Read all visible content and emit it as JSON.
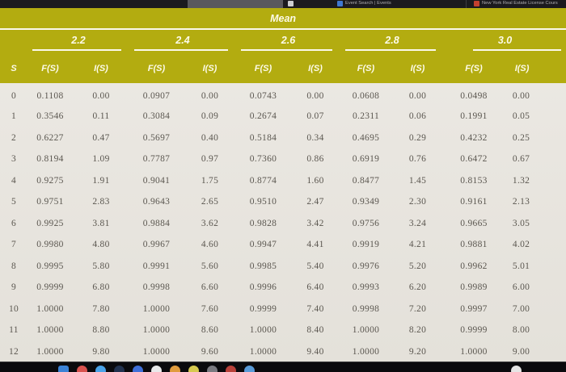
{
  "topbar": {
    "tab_events": "Event Search | Events",
    "tab_realestate": "New York Real Estate License Cours"
  },
  "table": {
    "title": "Mean",
    "row_label_header": "S",
    "col_groups": [
      {
        "mean": "2.2"
      },
      {
        "mean": "2.4"
      },
      {
        "mean": "2.6"
      },
      {
        "mean": "2.8"
      },
      {
        "mean": "3.0"
      }
    ],
    "sub_headers": {
      "f": "F(S)",
      "i": "I(S)"
    },
    "rows": [
      {
        "s": "0",
        "values": [
          "0.1108",
          "0.00",
          "0.0907",
          "0.00",
          "0.0743",
          "0.00",
          "0.0608",
          "0.00",
          "0.0498",
          "0.00"
        ]
      },
      {
        "s": "1",
        "values": [
          "0.3546",
          "0.11",
          "0.3084",
          "0.09",
          "0.2674",
          "0.07",
          "0.2311",
          "0.06",
          "0.1991",
          "0.05"
        ]
      },
      {
        "s": "2",
        "values": [
          "0.6227",
          "0.47",
          "0.5697",
          "0.40",
          "0.5184",
          "0.34",
          "0.4695",
          "0.29",
          "0.4232",
          "0.25"
        ]
      },
      {
        "s": "3",
        "values": [
          "0.8194",
          "1.09",
          "0.7787",
          "0.97",
          "0.7360",
          "0.86",
          "0.6919",
          "0.76",
          "0.6472",
          "0.67"
        ]
      },
      {
        "s": "4",
        "values": [
          "0.9275",
          "1.91",
          "0.9041",
          "1.75",
          "0.8774",
          "1.60",
          "0.8477",
          "1.45",
          "0.8153",
          "1.32"
        ]
      },
      {
        "s": "5",
        "values": [
          "0.9751",
          "2.83",
          "0.9643",
          "2.65",
          "0.9510",
          "2.47",
          "0.9349",
          "2.30",
          "0.9161",
          "2.13"
        ]
      },
      {
        "s": "6",
        "values": [
          "0.9925",
          "3.81",
          "0.9884",
          "3.62",
          "0.9828",
          "3.42",
          "0.9756",
          "3.24",
          "0.9665",
          "3.05"
        ]
      },
      {
        "s": "7",
        "values": [
          "0.9980",
          "4.80",
          "0.9967",
          "4.60",
          "0.9947",
          "4.41",
          "0.9919",
          "4.21",
          "0.9881",
          "4.02"
        ]
      },
      {
        "s": "8",
        "values": [
          "0.9995",
          "5.80",
          "0.9991",
          "5.60",
          "0.9985",
          "5.40",
          "0.9976",
          "5.20",
          "0.9962",
          "5.01"
        ]
      },
      {
        "s": "9",
        "values": [
          "0.9999",
          "6.80",
          "0.9998",
          "6.60",
          "0.9996",
          "6.40",
          "0.9993",
          "6.20",
          "0.9989",
          "6.00"
        ]
      },
      {
        "s": "10",
        "values": [
          "1.0000",
          "7.80",
          "1.0000",
          "7.60",
          "0.9999",
          "7.40",
          "0.9998",
          "7.20",
          "0.9997",
          "7.00"
        ]
      },
      {
        "s": "11",
        "values": [
          "1.0000",
          "8.80",
          "1.0000",
          "8.60",
          "1.0000",
          "8.40",
          "1.0000",
          "8.20",
          "0.9999",
          "8.00"
        ]
      },
      {
        "s": "12",
        "values": [
          "1.0000",
          "9.80",
          "1.0000",
          "9.60",
          "1.0000",
          "9.40",
          "1.0000",
          "9.20",
          "1.0000",
          "9.00"
        ]
      }
    ]
  },
  "colors": {
    "header_yellow": "#b3ac10",
    "header_text": "#fdfbe9",
    "body_bg": "#e9e6e0",
    "body_text": "#5b5750",
    "topbar_bg": "#1b1a1e",
    "dock_bg": "#0a0a0d"
  },
  "dock_icons": [
    {
      "name": "app-icon-1",
      "color": "#3b82d6",
      "shape": "square"
    },
    {
      "name": "app-icon-2",
      "color": "#d9534f",
      "shape": "circle"
    },
    {
      "name": "app-icon-3",
      "color": "#4aa3e8",
      "shape": "circle"
    },
    {
      "name": "app-icon-4",
      "color": "#22324f",
      "shape": "circle"
    },
    {
      "name": "app-icon-5",
      "color": "#3f6fd8",
      "shape": "circle"
    },
    {
      "name": "app-icon-6",
      "color": "#e8e9ea",
      "shape": "circle"
    },
    {
      "name": "app-icon-7",
      "color": "#e09b3d",
      "shape": "circle"
    },
    {
      "name": "app-icon-8",
      "color": "#d6c94f",
      "shape": "circle"
    },
    {
      "name": "app-icon-9",
      "color": "#7a7a80",
      "shape": "circle"
    },
    {
      "name": "app-icon-10",
      "color": "#b9413a",
      "shape": "circle"
    },
    {
      "name": "app-icon-11",
      "color": "#5a9bd8",
      "shape": "circle"
    },
    {
      "name": "app-icon-12",
      "color": "#e5e5e5",
      "shape": "circle-push"
    }
  ]
}
